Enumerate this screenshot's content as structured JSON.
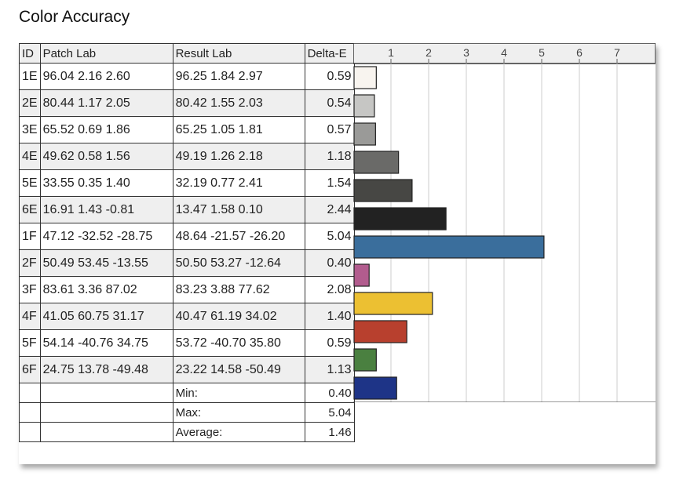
{
  "title": "Color Accuracy",
  "headers": [
    "ID",
    "Patch Lab",
    "Result Lab",
    "Delta-E"
  ],
  "rows": [
    {
      "id": "1E",
      "patch": "96.04  2.16  2.60",
      "result": "96.25  1.84  2.97",
      "de": "0.59"
    },
    {
      "id": "2E",
      "patch": "80.44  1.17  2.05",
      "result": "80.42  1.55  2.03",
      "de": "0.54"
    },
    {
      "id": "3E",
      "patch": "65.52  0.69  1.86",
      "result": "65.25  1.05  1.81",
      "de": "0.57"
    },
    {
      "id": "4E",
      "patch": "49.62  0.58  1.56",
      "result": "49.19  1.26  2.18",
      "de": "1.18"
    },
    {
      "id": "5E",
      "patch": "33.55  0.35  1.40",
      "result": "32.19  0.77  2.41",
      "de": "1.54"
    },
    {
      "id": "6E",
      "patch": "16.91  1.43  -0.81",
      "result": "13.47  1.58  0.10",
      "de": "2.44"
    },
    {
      "id": "1F",
      "patch": "47.12 -32.52 -28.75",
      "result": "48.64 -21.57 -26.20",
      "de": "5.04"
    },
    {
      "id": "2F",
      "patch": "50.49  53.45 -13.55",
      "result": "50.50  53.27 -12.64",
      "de": "0.40"
    },
    {
      "id": "3F",
      "patch": "83.61  3.36  87.02",
      "result": "83.23  3.88  77.62",
      "de": "2.08"
    },
    {
      "id": "4F",
      "patch": "41.05  60.75  31.17",
      "result": "40.47  61.19  34.02",
      "de": "1.40"
    },
    {
      "id": "5F",
      "patch": "54.14 -40.76  34.75",
      "result": "53.72 -40.70  35.80",
      "de": "0.59"
    },
    {
      "id": "6F",
      "patch": "24.75  13.78 -49.48",
      "result": "23.22  14.58 -50.49",
      "de": "1.13"
    }
  ],
  "summary": [
    {
      "label": "Min:",
      "value": "0.40"
    },
    {
      "label": "Max:",
      "value": "5.04"
    },
    {
      "label": "Average:",
      "value": "1.46"
    }
  ],
  "chart_data": {
    "type": "bar",
    "orientation": "horizontal",
    "categories": [
      "1E",
      "2E",
      "3E",
      "4E",
      "5E",
      "6E",
      "1F",
      "2F",
      "3F",
      "4F",
      "5F",
      "6F"
    ],
    "values": [
      0.59,
      0.54,
      0.57,
      1.18,
      1.54,
      2.44,
      5.04,
      0.4,
      2.08,
      1.4,
      0.59,
      1.13
    ],
    "colors": [
      "#f8f4ef",
      "#c6c6c4",
      "#9a9a98",
      "#6a6a68",
      "#474744",
      "#222222",
      "#3a6e9c",
      "#b25c8e",
      "#ecc032",
      "#b8402e",
      "#4a8040",
      "#1e3487"
    ],
    "xticks": [
      "1",
      "2",
      "3",
      "4",
      "5",
      "6",
      "7"
    ],
    "xlim": [
      0,
      8
    ],
    "grid": true
  }
}
